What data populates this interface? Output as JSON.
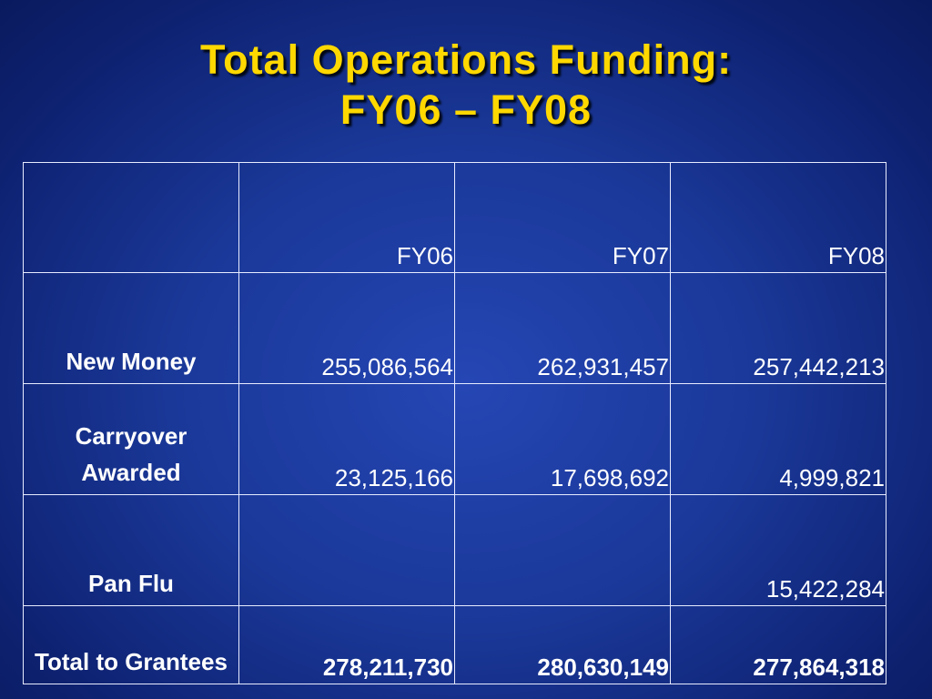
{
  "title": {
    "lines": [
      "Total Operations Funding:",
      "FY06 – FY08"
    ]
  },
  "table": {
    "columns": [
      "FY06",
      "FY07",
      "FY08"
    ],
    "rows": [
      {
        "label": "New Money",
        "values": [
          "255,086,564",
          "262,931,457",
          "257,442,213"
        ]
      },
      {
        "label": "Carryover Awarded",
        "values": [
          "23,125,166",
          "17,698,692",
          "4,999,821"
        ]
      },
      {
        "label": "Pan Flu",
        "values": [
          null,
          null,
          "15,422,284"
        ]
      },
      {
        "label": "Total to Grantees",
        "values": [
          "278,211,730",
          "280,630,149",
          "277,864,318"
        ]
      }
    ]
  }
}
